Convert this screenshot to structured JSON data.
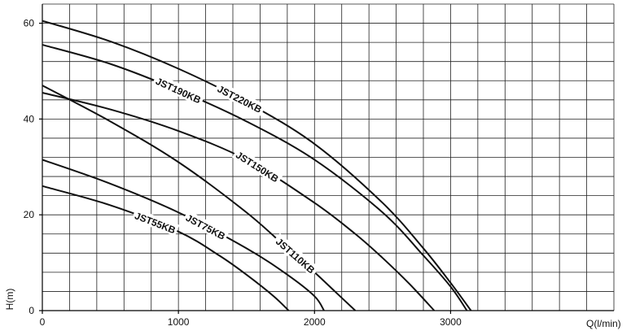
{
  "chart_data": {
    "type": "line",
    "xlabel": "Q(l/min)",
    "ylabel": "H(m)",
    "xlim": [
      0,
      4200
    ],
    "ylim": [
      0,
      64
    ],
    "x_ticks": [
      0,
      1000,
      2000,
      3000
    ],
    "y_ticks": [
      0,
      20,
      40,
      60
    ],
    "grid": true,
    "series": [
      {
        "name": "JST220KB",
        "x": [
          0,
          500,
          1000,
          1500,
          2000,
          2500,
          2800,
          3000,
          3150
        ],
        "y": [
          60.5,
          56.2,
          50.5,
          43.5,
          34.8,
          22.5,
          13,
          5.8,
          0
        ],
        "label_at": 1450
      },
      {
        "name": "JST190KB",
        "x": [
          0,
          500,
          1000,
          1500,
          2000,
          2500,
          2800,
          3000,
          3120
        ],
        "y": [
          55.5,
          51.5,
          46,
          39.5,
          31.5,
          20.5,
          11.5,
          5,
          0
        ],
        "label_at": 1000
      },
      {
        "name": "JST150KB",
        "x": [
          0,
          500,
          1000,
          1500,
          2000,
          2300,
          2500,
          2700,
          2880
        ],
        "y": [
          45.5,
          42,
          37.5,
          31.5,
          22.5,
          16,
          11,
          5.5,
          0
        ],
        "label_at": 1580
      },
      {
        "name": "JST110KB",
        "x": [
          0,
          500,
          1000,
          1500,
          1800,
          2000,
          2150,
          2300
        ],
        "y": [
          47,
          39.5,
          31,
          20.5,
          13,
          8,
          4,
          0
        ],
        "label_at": 1860
      },
      {
        "name": "JST75KB",
        "x": [
          0,
          500,
          1000,
          1500,
          1800,
          2000,
          2070
        ],
        "y": [
          31.5,
          26.5,
          20.5,
          13,
          7.5,
          3,
          0
        ],
        "label_at": 1200
      },
      {
        "name": "JST55KB",
        "x": [
          0,
          500,
          1000,
          1300,
          1500,
          1700,
          1810
        ],
        "y": [
          26,
          22,
          16.5,
          11.5,
          7.5,
          3,
          0
        ],
        "label_at": 830
      }
    ]
  }
}
